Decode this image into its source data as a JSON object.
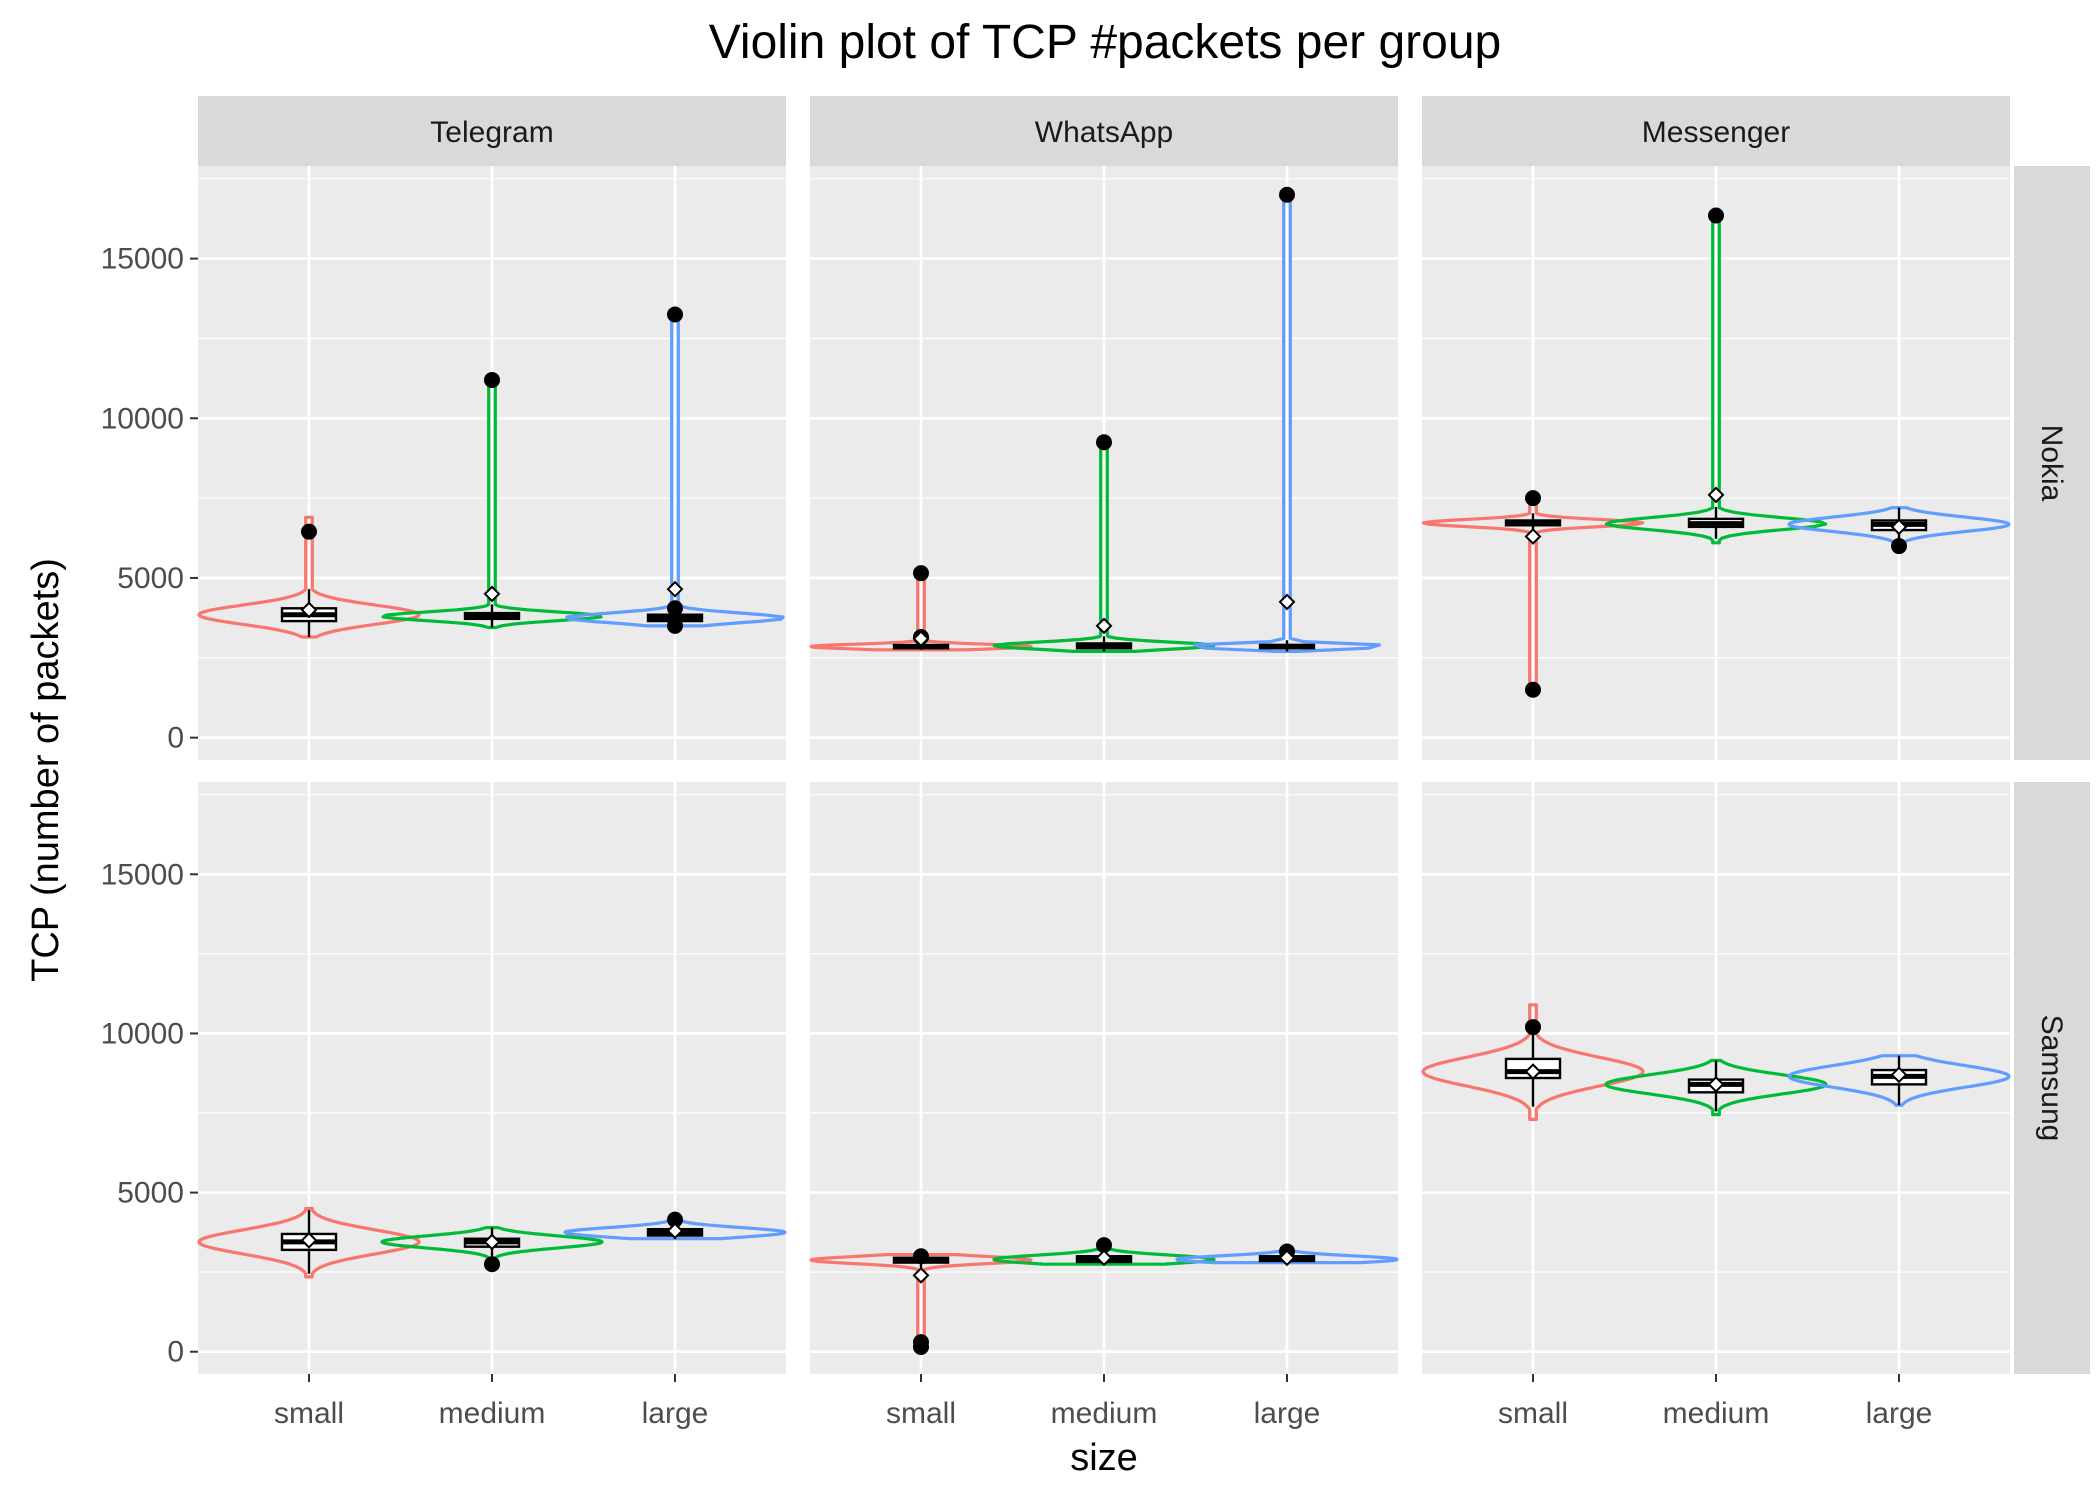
{
  "chart_data": {
    "type": "violin",
    "title": "Violin plot of TCP #packets per group",
    "xlabel": "size",
    "ylabel": "TCP (number of packets)",
    "categories": [
      "small",
      "medium",
      "large"
    ],
    "facet_columns": [
      "Telegram",
      "WhatsApp",
      "Messenger"
    ],
    "facet_rows": [
      "Nokia",
      "Samsung"
    ],
    "yticks": [
      0,
      5000,
      10000,
      15000
    ],
    "ylim": [
      -700,
      17900
    ],
    "colors": {
      "small": "#F8766D",
      "medium": "#00BA38",
      "large": "#619CFF"
    },
    "panels": [
      {
        "app": "Telegram",
        "device": "Nokia",
        "groups": [
          {
            "size": "small",
            "min": 3150,
            "max": 6900,
            "q1": 3650,
            "median": 3850,
            "q3": 4050,
            "mean": 4000,
            "outliers": [
              6450
            ]
          },
          {
            "size": "medium",
            "min": 3450,
            "max": 11200,
            "q1": 3720,
            "median": 3800,
            "q3": 3900,
            "mean": 4500,
            "outliers": [
              11200
            ]
          },
          {
            "size": "large",
            "min": 3500,
            "max": 13250,
            "q1": 3650,
            "median": 3750,
            "q3": 3850,
            "mean": 4650,
            "outliers": [
              13250,
              4050,
              3500
            ]
          }
        ]
      },
      {
        "app": "WhatsApp",
        "device": "Nokia",
        "groups": [
          {
            "size": "small",
            "min": 2750,
            "max": 5150,
            "q1": 2800,
            "median": 2850,
            "q3": 2900,
            "mean": 3100,
            "outliers": [
              5150,
              3150
            ]
          },
          {
            "size": "medium",
            "min": 2700,
            "max": 9250,
            "q1": 2800,
            "median": 2880,
            "q3": 2950,
            "mean": 3500,
            "outliers": [
              9250
            ]
          },
          {
            "size": "large",
            "min": 2700,
            "max": 17000,
            "q1": 2800,
            "median": 2860,
            "q3": 2900,
            "mean": 4250,
            "outliers": [
              17000
            ]
          }
        ]
      },
      {
        "app": "Messenger",
        "device": "Nokia",
        "groups": [
          {
            "size": "small",
            "min": 1500,
            "max": 7500,
            "q1": 6650,
            "median": 6720,
            "q3": 6800,
            "mean": 6300,
            "outliers": [
              7500,
              1500
            ]
          },
          {
            "size": "medium",
            "min": 6100,
            "max": 16350,
            "q1": 6600,
            "median": 6700,
            "q3": 6850,
            "mean": 7600,
            "outliers": [
              16350
            ]
          },
          {
            "size": "large",
            "min": 5900,
            "max": 7200,
            "q1": 6500,
            "median": 6680,
            "q3": 6800,
            "mean": 6600,
            "outliers": [
              6000
            ]
          }
        ]
      },
      {
        "app": "Telegram",
        "device": "Samsung",
        "groups": [
          {
            "size": "small",
            "min": 2350,
            "max": 4500,
            "q1": 3200,
            "median": 3450,
            "q3": 3700,
            "mean": 3500,
            "outliers": []
          },
          {
            "size": "medium",
            "min": 2700,
            "max": 3900,
            "q1": 3300,
            "median": 3450,
            "q3": 3550,
            "mean": 3450,
            "outliers": [
              2750
            ]
          },
          {
            "size": "large",
            "min": 3550,
            "max": 4200,
            "q1": 3650,
            "median": 3750,
            "q3": 3850,
            "mean": 3800,
            "outliers": [
              4150
            ]
          }
        ]
      },
      {
        "app": "WhatsApp",
        "device": "Samsung",
        "groups": [
          {
            "size": "small",
            "min": 100,
            "max": 3050,
            "q1": 2800,
            "median": 2880,
            "q3": 2950,
            "mean": 2400,
            "outliers": [
              3000,
              300,
              150
            ]
          },
          {
            "size": "medium",
            "min": 2750,
            "max": 3350,
            "q1": 2820,
            "median": 2900,
            "q3": 3000,
            "mean": 2950,
            "outliers": [
              3350
            ]
          },
          {
            "size": "large",
            "min": 2800,
            "max": 3150,
            "q1": 2850,
            "median": 2900,
            "q3": 3000,
            "mean": 2950,
            "outliers": [
              3150
            ]
          }
        ]
      },
      {
        "app": "Messenger",
        "device": "Samsung",
        "groups": [
          {
            "size": "small",
            "min": 7300,
            "max": 10900,
            "q1": 8600,
            "median": 8800,
            "q3": 9200,
            "mean": 8800,
            "outliers": [
              10200
            ]
          },
          {
            "size": "medium",
            "min": 7450,
            "max": 9150,
            "q1": 8150,
            "median": 8400,
            "q3": 8550,
            "mean": 8400,
            "outliers": []
          },
          {
            "size": "large",
            "min": 7750,
            "max": 9300,
            "q1": 8400,
            "median": 8650,
            "q3": 8850,
            "mean": 8700,
            "outliers": []
          }
        ]
      }
    ]
  }
}
